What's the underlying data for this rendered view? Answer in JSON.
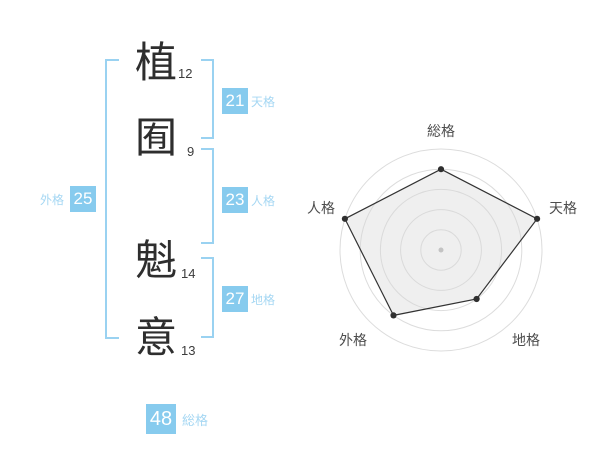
{
  "colors": {
    "accent_box": "#87cbee",
    "accent_text": "#a5d7f3",
    "accent_line": "#9ad2f1",
    "chart_stroke": "#333333",
    "chart_ring": "#dcdcdc"
  },
  "name_analysis": {
    "characters": [
      {
        "char": "植",
        "strokes": "12"
      },
      {
        "char": "囿",
        "strokes": "9"
      },
      {
        "char": "魁",
        "strokes": "14"
      },
      {
        "char": "意",
        "strokes": "13"
      }
    ],
    "scores": {
      "tenkaku": {
        "value": "21",
        "label": "天格"
      },
      "jinkaku": {
        "value": "23",
        "label": "人格"
      },
      "chikaku": {
        "value": "27",
        "label": "地格"
      },
      "gaikaku": {
        "value": "25",
        "label": "外格"
      },
      "soukaku": {
        "value": "48",
        "label": "総格"
      }
    }
  },
  "chart_data": {
    "type": "radar",
    "axes": [
      "総格",
      "天格",
      "地格",
      "外格",
      "人格"
    ],
    "values": [
      4,
      5,
      3,
      4,
      5
    ],
    "max": 5,
    "rings": 5,
    "start_angle_deg": -90,
    "grid": "circular",
    "legend": "none",
    "title": ""
  }
}
